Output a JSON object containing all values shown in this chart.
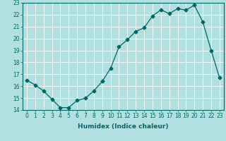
{
  "x": [
    0,
    1,
    2,
    3,
    4,
    5,
    6,
    7,
    8,
    9,
    10,
    11,
    12,
    13,
    14,
    15,
    16,
    17,
    18,
    19,
    20,
    21,
    22,
    23
  ],
  "y": [
    16.5,
    16.1,
    15.6,
    14.9,
    14.2,
    14.2,
    14.8,
    15.0,
    15.6,
    16.4,
    17.5,
    19.3,
    19.9,
    20.6,
    20.9,
    21.9,
    22.4,
    22.1,
    22.5,
    22.4,
    22.8,
    21.4,
    19.0,
    16.7
  ],
  "line_color": "#006666",
  "marker": "D",
  "marker_size": 2.5,
  "bg_color": "#b2e0e0",
  "grid_color": "#ffffff",
  "xlabel": "Humidex (Indice chaleur)",
  "xlim": [
    -0.5,
    23.5
  ],
  "ylim": [
    14,
    23
  ],
  "yticks": [
    14,
    15,
    16,
    17,
    18,
    19,
    20,
    21,
    22,
    23
  ],
  "xticks": [
    0,
    1,
    2,
    3,
    4,
    5,
    6,
    7,
    8,
    9,
    10,
    11,
    12,
    13,
    14,
    15,
    16,
    17,
    18,
    19,
    20,
    21,
    22,
    23
  ],
  "tick_fontsize": 5.5,
  "xlabel_fontsize": 6.5
}
